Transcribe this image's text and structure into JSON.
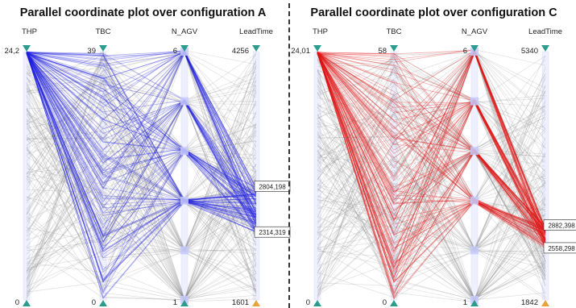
{
  "panels": [
    {
      "id": "A",
      "title": "Parallel coordinate plot over configuration A",
      "highlight_color": "#1f1fe0",
      "axes": [
        {
          "name": "THP",
          "top_label": "24,2",
          "bottom_label": "0"
        },
        {
          "name": "TBC",
          "top_label": "39",
          "bottom_label": "0"
        },
        {
          "name": "N_AGV",
          "top_label": "6",
          "bottom_label": "1"
        },
        {
          "name": "LeadTime",
          "top_label": "4256",
          "bottom_label": "1601"
        }
      ],
      "range_labels": [
        "2804,198",
        "2314,319"
      ]
    },
    {
      "id": "C",
      "title": "Parallel coordinate plot over configuration C",
      "highlight_color": "#e01515",
      "axes": [
        {
          "name": "THP",
          "top_label": "24,01",
          "bottom_label": "0"
        },
        {
          "name": "TBC",
          "top_label": "58",
          "bottom_label": "0"
        },
        {
          "name": "N_AGV",
          "top_label": "6",
          "bottom_label": "1"
        },
        {
          "name": "LeadTime",
          "top_label": "5340",
          "bottom_label": "1842"
        }
      ],
      "range_labels": [
        "2882,398",
        "2558,298"
      ]
    }
  ],
  "chart_data": [
    {
      "type": "parallel-coordinates",
      "title": "Parallel coordinate plot over configuration A",
      "axes": [
        "THP",
        "TBC",
        "N_AGV",
        "LeadTime"
      ],
      "ranges": {
        "THP": [
          0,
          24.2
        ],
        "TBC": [
          0,
          39
        ],
        "N_AGV": [
          1,
          6
        ],
        "LeadTime": [
          1601,
          4256
        ]
      },
      "n_agv_levels": [
        1,
        2,
        3,
        4,
        5,
        6
      ],
      "highlight": {
        "color": "#1f1fe0",
        "filter": {
          "THP": [
            24.2,
            24.2
          ],
          "LeadTime": [
            2314.319,
            2804.198
          ]
        }
      },
      "background_color": "#8c8c8c"
    },
    {
      "type": "parallel-coordinates",
      "title": "Parallel coordinate plot over configuration C",
      "axes": [
        "THP",
        "TBC",
        "N_AGV",
        "LeadTime"
      ],
      "ranges": {
        "THP": [
          0,
          24.01
        ],
        "TBC": [
          0,
          58
        ],
        "N_AGV": [
          1,
          6
        ],
        "LeadTime": [
          1842,
          5340
        ]
      },
      "n_agv_levels": [
        1,
        2,
        3,
        4,
        5,
        6
      ],
      "highlight": {
        "color": "#e01515",
        "filter": {
          "THP": [
            24.01,
            24.01
          ],
          "LeadTime": [
            2558.298,
            2882.398
          ]
        }
      },
      "background_color": "#8c8c8c"
    }
  ]
}
